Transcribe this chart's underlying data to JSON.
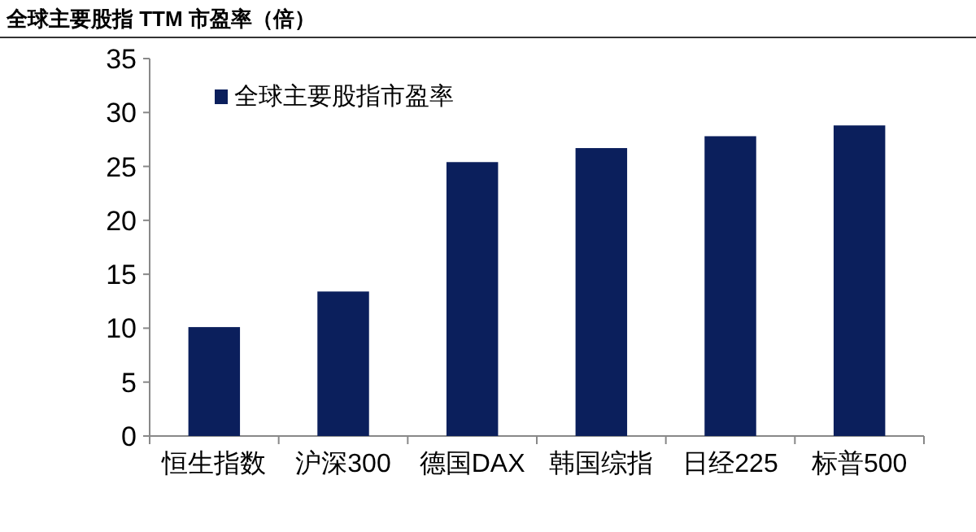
{
  "chart_data": {
    "type": "bar",
    "title": "全球主要股指 TTM 市盈率（倍）",
    "categories": [
      "恒生指数",
      "沪深300",
      "德国DAX",
      "韩国综指",
      "日经225",
      "标普500"
    ],
    "series": [
      {
        "name": "全球主要股指市盈率",
        "color": "#0b1f5c",
        "values": [
          10.1,
          13.4,
          25.4,
          26.7,
          27.8,
          28.8
        ]
      }
    ],
    "ylim": [
      0,
      35
    ],
    "yticks": [
      0,
      5,
      10,
      15,
      20,
      25,
      30,
      35
    ],
    "legend": "top left",
    "grid": false
  }
}
